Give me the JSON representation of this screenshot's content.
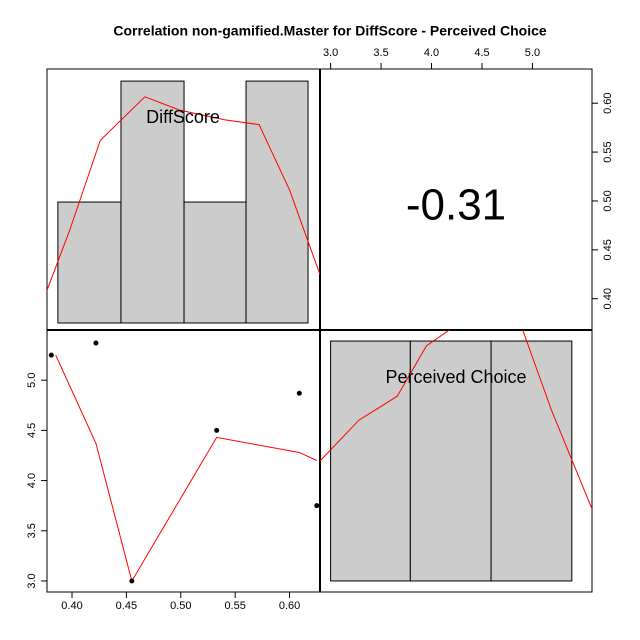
{
  "chart_data": {
    "type": "pairs",
    "title": "Correlation non-gamified.Master for DiffScore - Perceived Choice",
    "variables": [
      "DiffScore",
      "Perceived Choice"
    ],
    "correlation": -0.31,
    "scatter": {
      "x": [
        0.381,
        0.422,
        0.455,
        0.533,
        0.609,
        0.625
      ],
      "y": [
        5.25,
        5.37,
        3.0,
        4.5,
        4.87,
        3.75
      ],
      "color": "#000000"
    },
    "smooth": {
      "x": [
        0.385,
        0.422,
        0.455,
        0.533,
        0.609,
        0.625
      ],
      "y": [
        5.25,
        4.37,
        3.0,
        4.43,
        4.28,
        4.2
      ],
      "color": "#ff0000"
    },
    "hist1": {
      "bins": [
        0.387,
        0.445,
        0.503,
        0.56,
        0.617
      ],
      "counts": [
        1,
        2,
        1,
        2
      ],
      "ylim": [
        -0.058,
        2.1
      ],
      "color": "#cccccc",
      "density": {
        "x": [
          0.377,
          0.398,
          0.426,
          0.467,
          0.499,
          0.54,
          0.572,
          0.6,
          0.628
        ],
        "y": [
          0.27,
          0.77,
          1.51,
          1.87,
          1.76,
          1.68,
          1.64,
          1.1,
          0.4
        ],
        "color": "#ff0000"
      }
    },
    "hist2": {
      "bins": [
        3.0,
        3.79,
        4.59,
        5.39
      ],
      "counts": [
        1,
        1,
        1
      ],
      "ylim": [
        -0.046,
        1.046
      ],
      "color": "#cccccc",
      "density": {
        "x": [
          2.895,
          3.28,
          3.66,
          3.95,
          4.19,
          4.9,
          5.19,
          5.59
        ],
        "y": [
          0.5,
          0.67,
          0.77,
          0.98,
          1.05,
          1.05,
          0.71,
          0.3
        ],
        "color": "#ff0000"
      }
    },
    "xlim": [
      0.377,
      0.628
    ],
    "xticks": [
      {
        "value": 0.4,
        "label": "0.40"
      },
      0.45,
      {
        "value": 0.5,
        "label": "0.50"
      },
      0.55,
      {
        "value": 0.6,
        "label": "0.60"
      }
    ],
    "ylim": [
      2.89,
      5.5
    ],
    "yticks": [
      {
        "value": 3,
        "label": "3.0"
      },
      3.5,
      {
        "value": 4,
        "label": "4.0"
      },
      4.5,
      {
        "value": 5,
        "label": "5.0"
      }
    ],
    "x2lim": [
      2.895,
      5.59
    ],
    "x2ticks": [
      {
        "value": 3,
        "label": "3.0"
      },
      3.5,
      {
        "value": 4,
        "label": "4.0"
      },
      4.5,
      {
        "value": 5,
        "label": "5.0"
      }
    ],
    "y2lim": [
      0.368,
      0.635
    ],
    "y2ticks": [
      {
        "value": 0.4,
        "label": "0.40"
      },
      0.45,
      {
        "value": 0.5,
        "label": "0.50"
      },
      0.55,
      {
        "value": 0.6,
        "label": "0.60"
      }
    ]
  }
}
